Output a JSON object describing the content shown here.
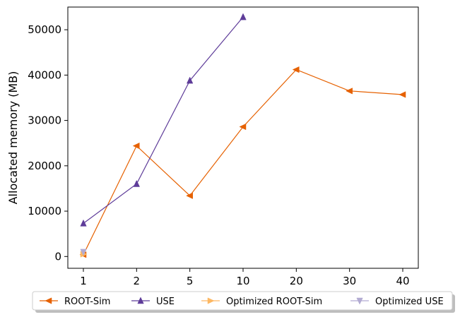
{
  "chart_data": {
    "type": "line",
    "title": "",
    "xlabel": "",
    "ylabel": "Allocated memory (MB)",
    "categories": [
      "1",
      "2",
      "5",
      "10",
      "20",
      "30",
      "40"
    ],
    "ylim": [
      -2600,
      55000
    ],
    "yticks": [
      0,
      10000,
      20000,
      30000,
      40000,
      50000
    ],
    "ytick_labels": [
      "0",
      "10000",
      "20000",
      "30000",
      "40000",
      "50000"
    ],
    "grid": false,
    "legend_placement": "bottom-center",
    "series": [
      {
        "name": "ROOT-Sim",
        "color": "#e66101",
        "marker": "triangle-left",
        "show_line": true,
        "points": [
          [
            0,
            400
          ],
          [
            1,
            24400
          ],
          [
            2,
            13400
          ],
          [
            3,
            28600
          ],
          [
            4,
            41200
          ],
          [
            5,
            36500
          ],
          [
            6,
            35700
          ]
        ]
      },
      {
        "name": "USE",
        "color": "#5e3c99",
        "marker": "triangle-up",
        "show_line": true,
        "points": [
          [
            0,
            7300
          ],
          [
            1,
            16000
          ],
          [
            2,
            38800
          ],
          [
            3,
            52800
          ]
        ]
      },
      {
        "name": "Optimized ROOT-Sim",
        "color": "#fdb863",
        "marker": "triangle-right",
        "show_line": true,
        "points": [
          [
            0,
            500
          ]
        ]
      },
      {
        "name": "Optimized USE",
        "color": "#b2abd2",
        "marker": "triangle-down",
        "show_line": true,
        "points": [
          [
            0,
            1000
          ]
        ]
      }
    ]
  }
}
